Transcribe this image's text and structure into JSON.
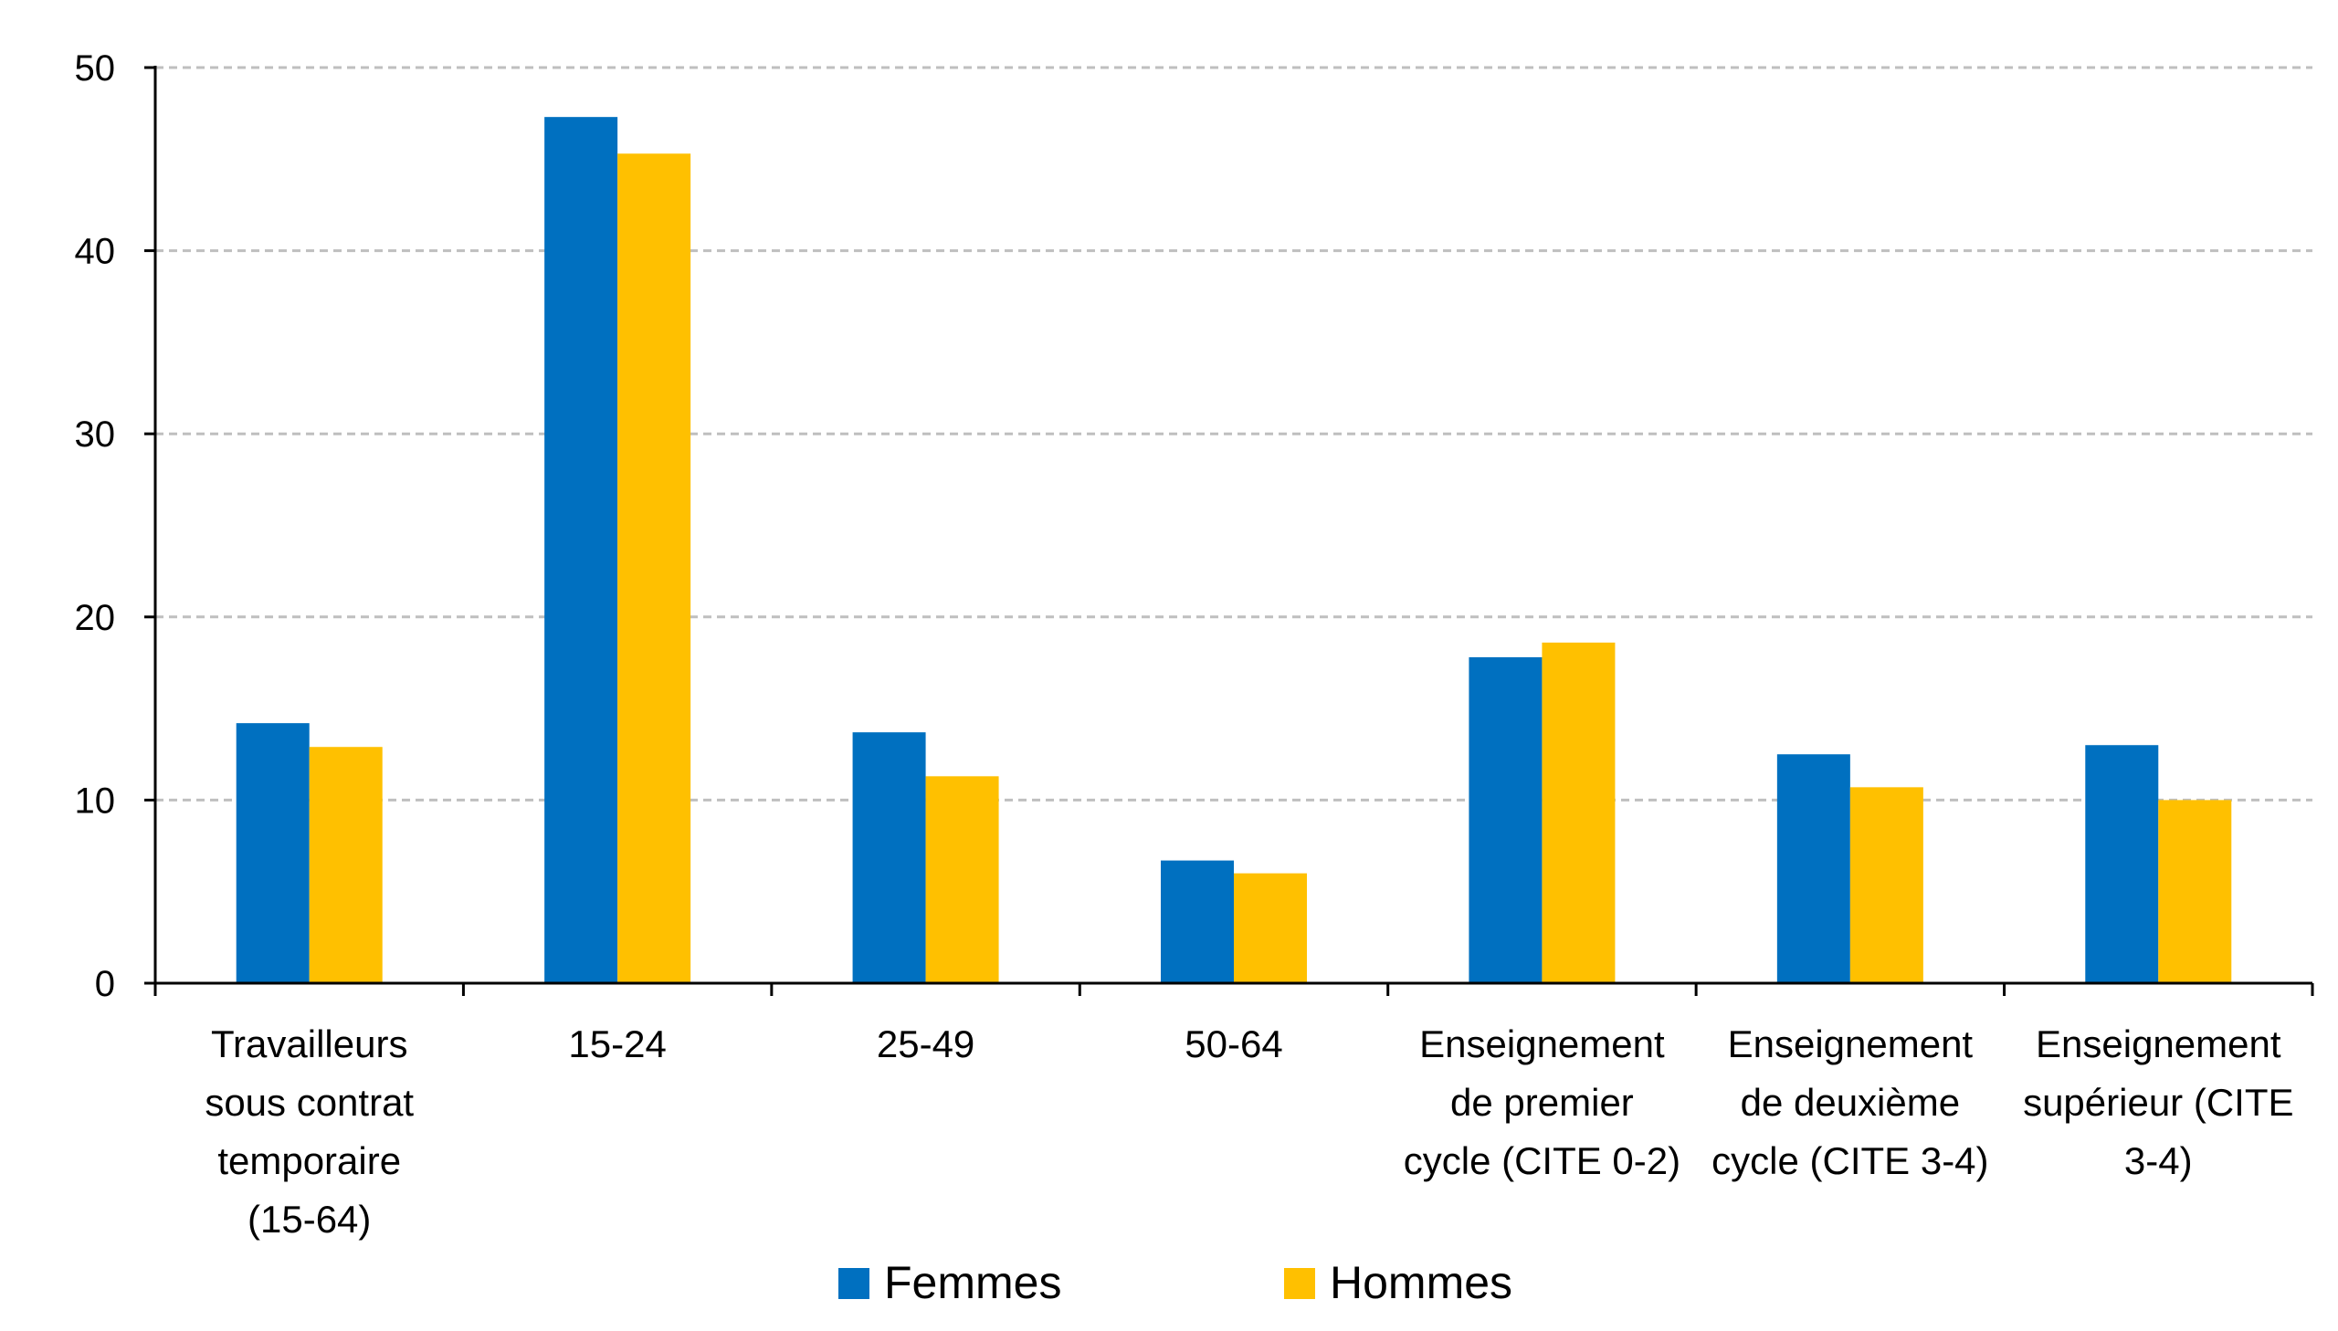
{
  "chart_data": {
    "type": "bar",
    "categories": [
      [
        "Travailleurs",
        "sous contrat",
        "temporaire",
        "(15-64)"
      ],
      [
        "15-24"
      ],
      [
        "25-49"
      ],
      [
        "50-64"
      ],
      [
        "Enseignement",
        "de premier",
        "cycle (CITE 0-2)"
      ],
      [
        "Enseignement",
        "de deuxième",
        "cycle (CITE 3-4)"
      ],
      [
        "Enseignement",
        "supérieur (CITE",
        "3-4)"
      ]
    ],
    "series": [
      {
        "name": "Femmes",
        "color": "#0070C0",
        "values": [
          14.2,
          47.3,
          13.7,
          6.7,
          17.8,
          12.5,
          13.0
        ]
      },
      {
        "name": "Hommes",
        "color": "#FFC000",
        "values": [
          12.9,
          45.3,
          11.3,
          6.0,
          18.6,
          10.7,
          10.0
        ]
      }
    ],
    "ylim": [
      0,
      50
    ],
    "yticks": [
      0,
      10,
      20,
      30,
      40,
      50
    ],
    "grid": true,
    "legend": "bottom-center"
  }
}
